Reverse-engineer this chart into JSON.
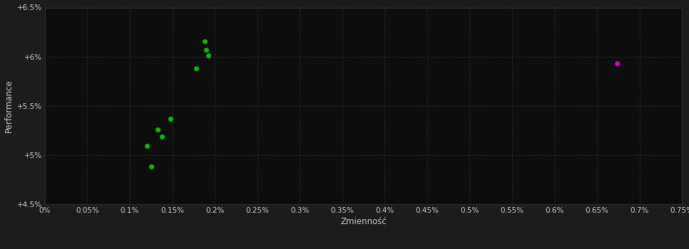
{
  "background_color": "#1c1c1c",
  "plot_bg_color": "#0d0d0d",
  "grid_color": "#3a3a3a",
  "text_color": "#c8c8c8",
  "xlabel": "Zmienność",
  "ylabel": "Performance",
  "xlim": [
    0.0,
    0.0075
  ],
  "ylim": [
    0.045,
    0.065
  ],
  "xtick_values": [
    0.0,
    0.0005,
    0.001,
    0.0015,
    0.002,
    0.0025,
    0.003,
    0.0035,
    0.004,
    0.0045,
    0.005,
    0.0055,
    0.006,
    0.0065,
    0.007,
    0.0075
  ],
  "xtick_labels": [
    "0%",
    "0.05%",
    "0.1%",
    "0.15%",
    "0.2%",
    "0.25%",
    "0.3%",
    "0.35%",
    "0.4%",
    "0.45%",
    "0.5%",
    "0.55%",
    "0.6%",
    "0.65%",
    "0.7%",
    "0.75%"
  ],
  "ytick_values": [
    0.045,
    0.05,
    0.055,
    0.06,
    0.065
  ],
  "ytick_labels": [
    "+4.5%",
    "+5%",
    "+5.5%",
    "+6%",
    "+6.5%"
  ],
  "green_points": [
    [
      0.00188,
      0.0616
    ],
    [
      0.0019,
      0.0607
    ],
    [
      0.00192,
      0.0601
    ],
    [
      0.00178,
      0.0588
    ],
    [
      0.00148,
      0.0537
    ],
    [
      0.00133,
      0.0526
    ],
    [
      0.00138,
      0.0519
    ],
    [
      0.0012,
      0.0509
    ],
    [
      0.00125,
      0.0488
    ]
  ],
  "magenta_points": [
    [
      0.00673,
      0.0593
    ]
  ],
  "green_color": "#00bb00",
  "magenta_color": "#cc00cc",
  "marker_size": 5
}
